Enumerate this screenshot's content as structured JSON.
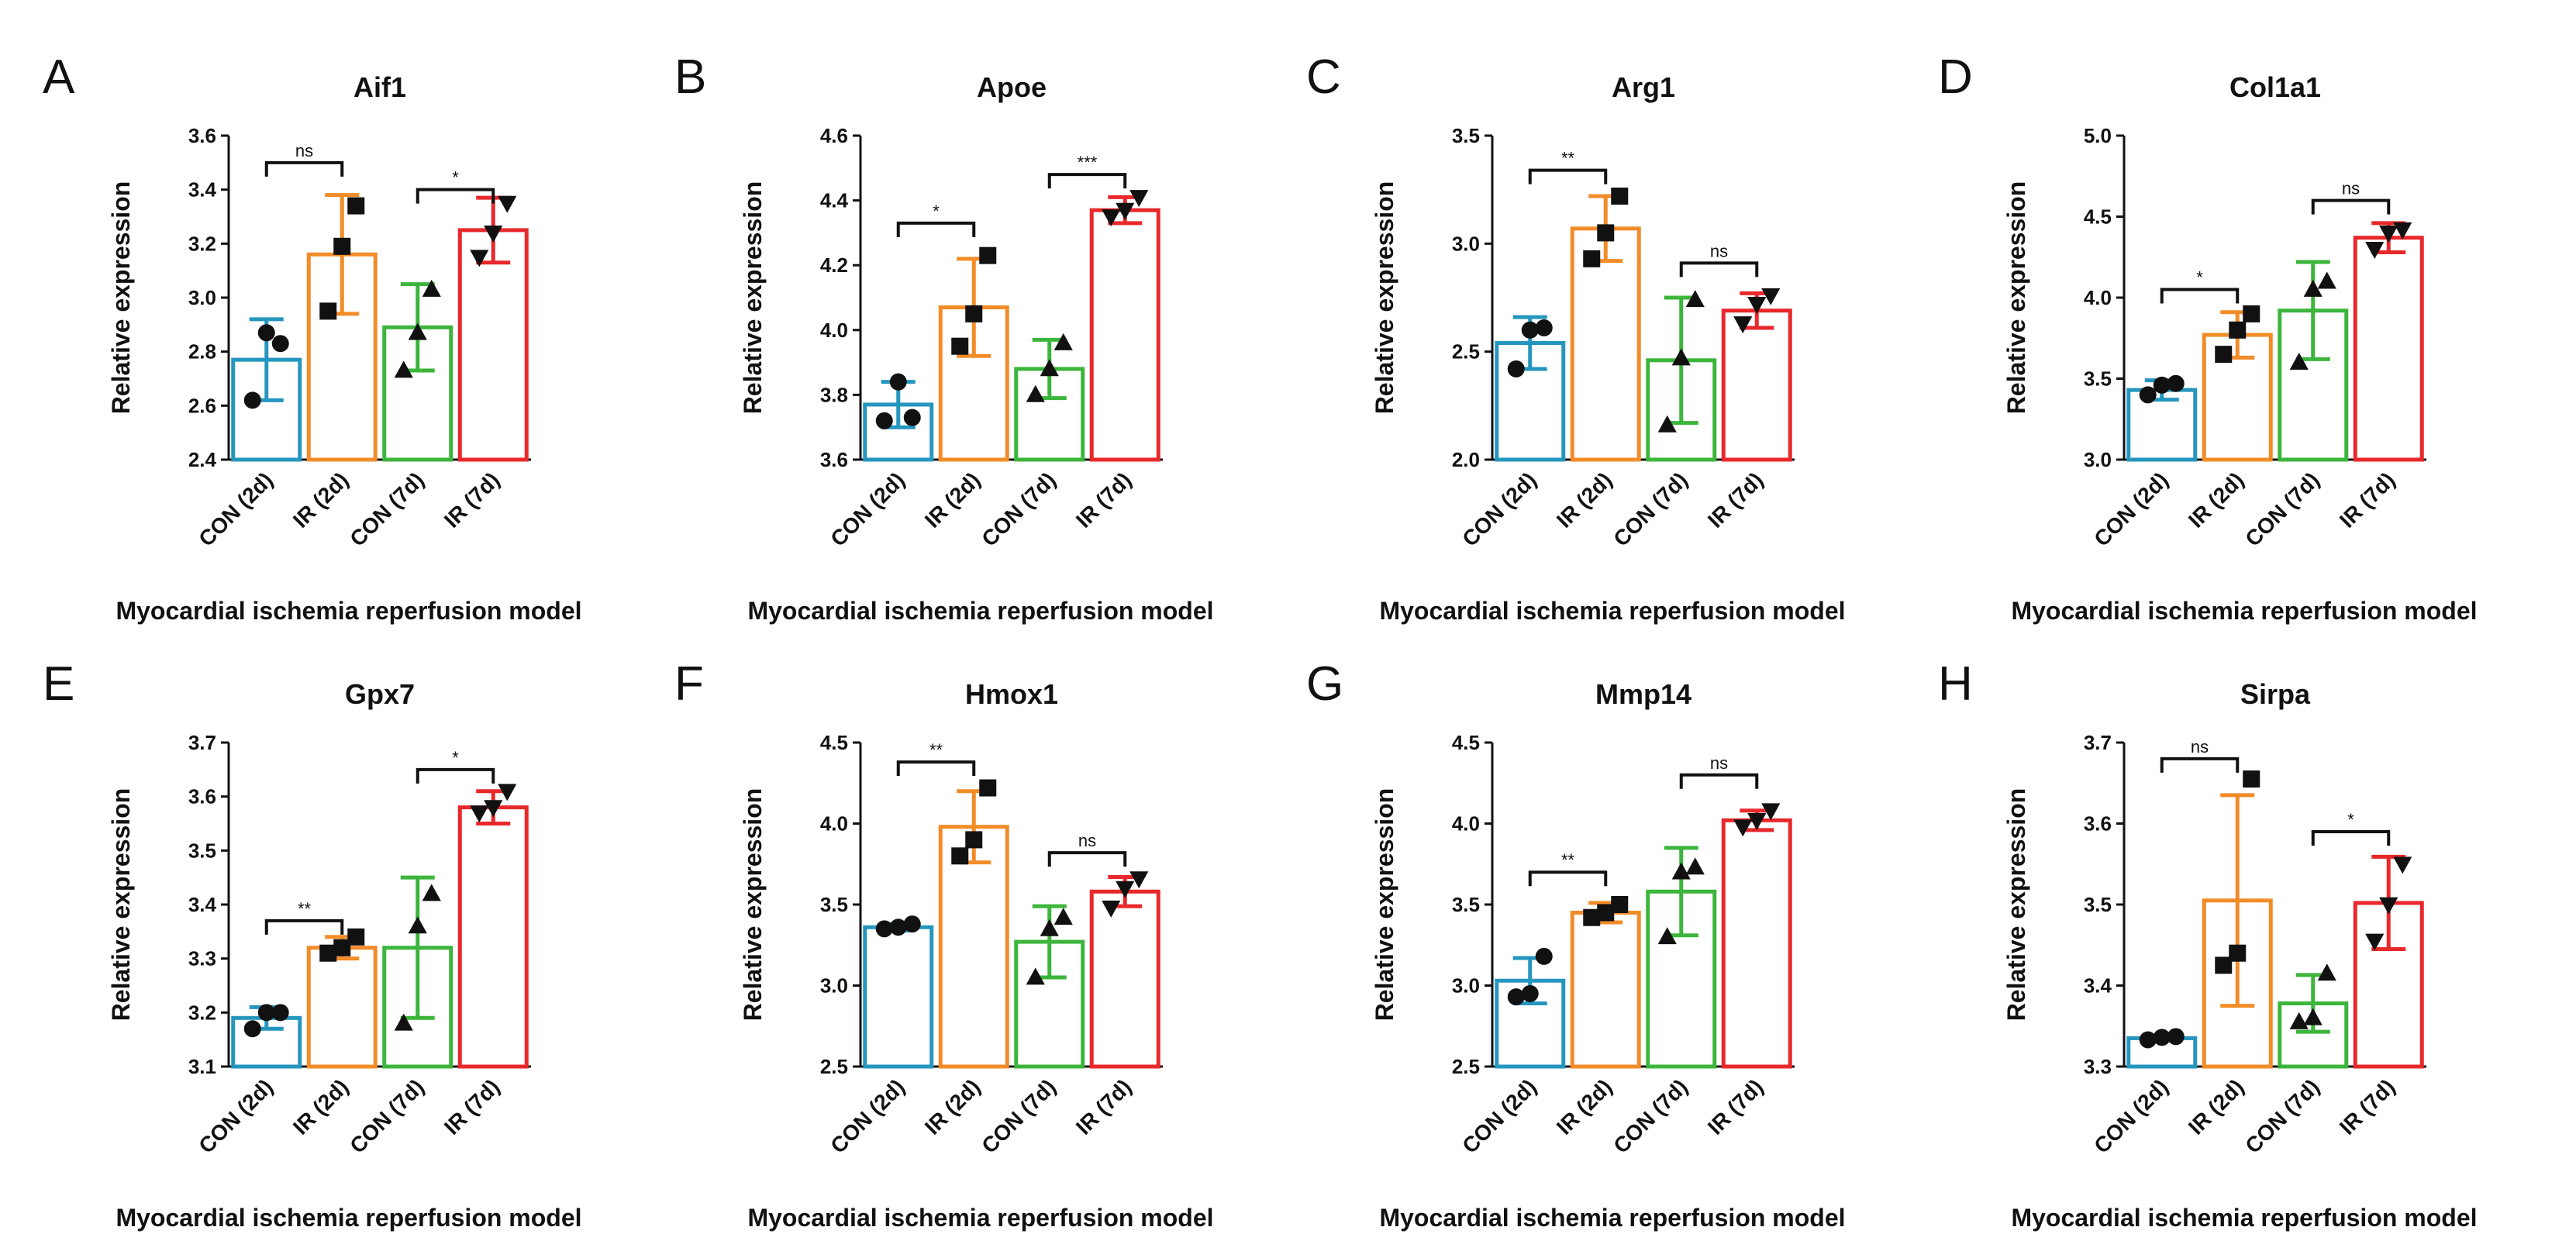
{
  "figure": {
    "x_label": "Myocardial ischemia reperfusion model",
    "y_label": "Relative expression",
    "group_colors": [
      "#2596be",
      "#f28c28",
      "#3cb53c",
      "#e8282b"
    ]
  },
  "chart_data": [
    {
      "panel": "A",
      "type": "bar",
      "title": "Aif1",
      "xlabel": "Myocardial ischemia reperfusion model",
      "ylabel": "Relative expression",
      "categories": [
        "CON (2d)",
        "IR (2d)",
        "CON (7d)",
        "IR (7d)"
      ],
      "ylim": [
        2.4,
        3.6
      ],
      "yticks": [
        "2.4",
        "2.6",
        "2.8",
        "3.0",
        "3.2",
        "3.4",
        "3.6"
      ],
      "series": [
        {
          "name": "CON (2d)",
          "marker": "circle",
          "mean": 2.77,
          "sd": 0.15,
          "points": [
            2.62,
            2.87,
            2.83
          ]
        },
        {
          "name": "IR (2d)",
          "marker": "square",
          "mean": 3.16,
          "sd": 0.22,
          "points": [
            2.95,
            3.19,
            3.34
          ]
        },
        {
          "name": "CON (7d)",
          "marker": "triangle-up",
          "mean": 2.89,
          "sd": 0.16,
          "points": [
            2.73,
            2.87,
            3.03
          ]
        },
        {
          "name": "IR (7d)",
          "marker": "triangle-down",
          "mean": 3.25,
          "sd": 0.12,
          "points": [
            3.15,
            3.24,
            3.35
          ]
        }
      ],
      "comparisons": [
        {
          "groups": [
            0,
            1
          ],
          "y": 3.5,
          "label": "ns"
        },
        {
          "groups": [
            2,
            3
          ],
          "y": 3.4,
          "label": "*"
        }
      ]
    },
    {
      "panel": "B",
      "type": "bar",
      "title": "Apoe",
      "xlabel": "Myocardial ischemia reperfusion model",
      "ylabel": "Relative expression",
      "categories": [
        "CON (2d)",
        "IR (2d)",
        "CON (7d)",
        "IR (7d)"
      ],
      "ylim": [
        3.6,
        4.6
      ],
      "yticks": [
        "3.6",
        "3.8",
        "4.0",
        "4.2",
        "4.4",
        "4.6"
      ],
      "series": [
        {
          "name": "CON (2d)",
          "marker": "circle",
          "mean": 3.77,
          "sd": 0.07,
          "points": [
            3.72,
            3.84,
            3.73
          ]
        },
        {
          "name": "IR (2d)",
          "marker": "square",
          "mean": 4.07,
          "sd": 0.15,
          "points": [
            3.95,
            4.05,
            4.23
          ]
        },
        {
          "name": "CON (7d)",
          "marker": "triangle-up",
          "mean": 3.88,
          "sd": 0.09,
          "points": [
            3.8,
            3.88,
            3.96
          ]
        },
        {
          "name": "IR (7d)",
          "marker": "triangle-down",
          "mean": 4.37,
          "sd": 0.04,
          "points": [
            4.35,
            4.37,
            4.41
          ]
        }
      ],
      "comparisons": [
        {
          "groups": [
            0,
            1
          ],
          "y": 4.33,
          "label": "*"
        },
        {
          "groups": [
            2,
            3
          ],
          "y": 4.48,
          "label": "***"
        }
      ]
    },
    {
      "panel": "C",
      "type": "bar",
      "title": "Arg1",
      "xlabel": "Myocardial ischemia reperfusion model",
      "ylabel": "Relative expression",
      "categories": [
        "CON (2d)",
        "IR (2d)",
        "CON (7d)",
        "IR (7d)"
      ],
      "ylim": [
        2.0,
        3.5
      ],
      "yticks": [
        "2.0",
        "2.5",
        "3.0",
        "3.5"
      ],
      "series": [
        {
          "name": "CON (2d)",
          "marker": "circle",
          "mean": 2.54,
          "sd": 0.12,
          "points": [
            2.42,
            2.6,
            2.61
          ]
        },
        {
          "name": "IR (2d)",
          "marker": "square",
          "mean": 3.07,
          "sd": 0.15,
          "points": [
            2.93,
            3.05,
            3.22
          ]
        },
        {
          "name": "CON (7d)",
          "marker": "triangle-up",
          "mean": 2.46,
          "sd": 0.29,
          "points": [
            2.16,
            2.47,
            2.74
          ]
        },
        {
          "name": "IR (7d)",
          "marker": "triangle-down",
          "mean": 2.69,
          "sd": 0.08,
          "points": [
            2.63,
            2.72,
            2.76
          ]
        }
      ],
      "comparisons": [
        {
          "groups": [
            0,
            1
          ],
          "y": 3.34,
          "label": "**"
        },
        {
          "groups": [
            2,
            3
          ],
          "y": 2.91,
          "label": "ns"
        }
      ]
    },
    {
      "panel": "D",
      "type": "bar",
      "title": "Col1a1",
      "xlabel": "Myocardial ischemia reperfusion model",
      "ylabel": "Relative expression",
      "categories": [
        "CON (2d)",
        "IR (2d)",
        "CON (7d)",
        "IR (7d)"
      ],
      "ylim": [
        3.0,
        5.0
      ],
      "yticks": [
        "3.0",
        "3.5",
        "4.0",
        "4.5",
        "5.0"
      ],
      "series": [
        {
          "name": "CON (2d)",
          "marker": "circle",
          "mean": 3.43,
          "sd": 0.06,
          "points": [
            3.4,
            3.46,
            3.47
          ]
        },
        {
          "name": "IR (2d)",
          "marker": "square",
          "mean": 3.77,
          "sd": 0.14,
          "points": [
            3.65,
            3.8,
            3.9
          ]
        },
        {
          "name": "CON (7d)",
          "marker": "triangle-up",
          "mean": 3.92,
          "sd": 0.3,
          "points": [
            3.6,
            4.05,
            4.1
          ]
        },
        {
          "name": "IR (7d)",
          "marker": "triangle-down",
          "mean": 4.37,
          "sd": 0.09,
          "points": [
            4.3,
            4.4,
            4.42
          ]
        }
      ],
      "comparisons": [
        {
          "groups": [
            0,
            1
          ],
          "y": 4.05,
          "label": "*"
        },
        {
          "groups": [
            2,
            3
          ],
          "y": 4.6,
          "label": "ns"
        }
      ]
    },
    {
      "panel": "E",
      "type": "bar",
      "title": "Gpx7",
      "xlabel": "Myocardial ischemia reperfusion model",
      "ylabel": "Relative expression",
      "categories": [
        "CON (2d)",
        "IR (2d)",
        "CON (7d)",
        "IR (7d)"
      ],
      "ylim": [
        3.1,
        3.7
      ],
      "yticks": [
        "3.1",
        "3.2",
        "3.3",
        "3.4",
        "3.5",
        "3.6",
        "3.7"
      ],
      "series": [
        {
          "name": "CON (2d)",
          "marker": "circle",
          "mean": 3.19,
          "sd": 0.02,
          "points": [
            3.17,
            3.2,
            3.2
          ]
        },
        {
          "name": "IR (2d)",
          "marker": "square",
          "mean": 3.32,
          "sd": 0.02,
          "points": [
            3.31,
            3.32,
            3.34
          ]
        },
        {
          "name": "CON (7d)",
          "marker": "triangle-up",
          "mean": 3.32,
          "sd": 0.13,
          "points": [
            3.18,
            3.36,
            3.42
          ]
        },
        {
          "name": "IR (7d)",
          "marker": "triangle-down",
          "mean": 3.58,
          "sd": 0.03,
          "points": [
            3.57,
            3.58,
            3.61
          ]
        }
      ],
      "comparisons": [
        {
          "groups": [
            0,
            1
          ],
          "y": 3.37,
          "label": "**"
        },
        {
          "groups": [
            2,
            3
          ],
          "y": 3.65,
          "label": "*"
        }
      ]
    },
    {
      "panel": "F",
      "type": "bar",
      "title": "Hmox1",
      "xlabel": "Myocardial ischemia reperfusion model",
      "ylabel": "Relative expression",
      "categories": [
        "CON (2d)",
        "IR (2d)",
        "CON (7d)",
        "IR (7d)"
      ],
      "ylim": [
        2.5,
        4.5
      ],
      "yticks": [
        "2.5",
        "3.0",
        "3.5",
        "4.0",
        "4.5"
      ],
      "series": [
        {
          "name": "CON (2d)",
          "marker": "circle",
          "mean": 3.36,
          "sd": 0.02,
          "points": [
            3.35,
            3.36,
            3.38
          ]
        },
        {
          "name": "IR (2d)",
          "marker": "square",
          "mean": 3.98,
          "sd": 0.22,
          "points": [
            3.8,
            3.9,
            4.22
          ]
        },
        {
          "name": "CON (7d)",
          "marker": "triangle-up",
          "mean": 3.27,
          "sd": 0.22,
          "points": [
            3.05,
            3.35,
            3.42
          ]
        },
        {
          "name": "IR (7d)",
          "marker": "triangle-down",
          "mean": 3.58,
          "sd": 0.09,
          "points": [
            3.48,
            3.6,
            3.66
          ]
        }
      ],
      "comparisons": [
        {
          "groups": [
            0,
            1
          ],
          "y": 4.38,
          "label": "**"
        },
        {
          "groups": [
            2,
            3
          ],
          "y": 3.82,
          "label": "ns"
        }
      ]
    },
    {
      "panel": "G",
      "type": "bar",
      "title": "Mmp14",
      "xlabel": "Myocardial ischemia reperfusion model",
      "ylabel": "Relative expression",
      "categories": [
        "CON (2d)",
        "IR (2d)",
        "CON (7d)",
        "IR (7d)"
      ],
      "ylim": [
        2.5,
        4.5
      ],
      "yticks": [
        "2.5",
        "3.0",
        "3.5",
        "4.0",
        "4.5"
      ],
      "series": [
        {
          "name": "CON (2d)",
          "marker": "circle",
          "mean": 3.03,
          "sd": 0.14,
          "points": [
            2.93,
            2.95,
            3.18
          ]
        },
        {
          "name": "IR (2d)",
          "marker": "square",
          "mean": 3.45,
          "sd": 0.06,
          "points": [
            3.42,
            3.45,
            3.5
          ]
        },
        {
          "name": "CON (7d)",
          "marker": "triangle-up",
          "mean": 3.58,
          "sd": 0.27,
          "points": [
            3.3,
            3.7,
            3.73
          ]
        },
        {
          "name": "IR (7d)",
          "marker": "triangle-down",
          "mean": 4.02,
          "sd": 0.06,
          "points": [
            3.98,
            4.02,
            4.08
          ]
        }
      ],
      "comparisons": [
        {
          "groups": [
            0,
            1
          ],
          "y": 3.7,
          "label": "**"
        },
        {
          "groups": [
            2,
            3
          ],
          "y": 4.3,
          "label": "ns"
        }
      ]
    },
    {
      "panel": "H",
      "type": "bar",
      "title": "Sirpa",
      "xlabel": "Myocardial ischemia reperfusion model",
      "ylabel": "Relative expression",
      "categories": [
        "CON (2d)",
        "IR (2d)",
        "CON (7d)",
        "IR (7d)"
      ],
      "ylim": [
        3.3,
        3.7
      ],
      "yticks": [
        "3.3",
        "3.4",
        "3.5",
        "3.6",
        "3.7"
      ],
      "series": [
        {
          "name": "CON (2d)",
          "marker": "circle",
          "mean": 3.335,
          "sd": 0.003,
          "points": [
            3.333,
            3.336,
            3.337
          ]
        },
        {
          "name": "IR (2d)",
          "marker": "square",
          "mean": 3.505,
          "sd": 0.13,
          "points": [
            3.425,
            3.44,
            3.655
          ]
        },
        {
          "name": "CON (7d)",
          "marker": "triangle-up",
          "mean": 3.378,
          "sd": 0.035,
          "points": [
            3.355,
            3.36,
            3.415
          ]
        },
        {
          "name": "IR (7d)",
          "marker": "triangle-down",
          "mean": 3.502,
          "sd": 0.057,
          "points": [
            3.455,
            3.5,
            3.55
          ]
        }
      ],
      "comparisons": [
        {
          "groups": [
            0,
            1
          ],
          "y": 3.68,
          "label": "ns"
        },
        {
          "groups": [
            2,
            3
          ],
          "y": 3.59,
          "label": "*"
        }
      ]
    }
  ]
}
